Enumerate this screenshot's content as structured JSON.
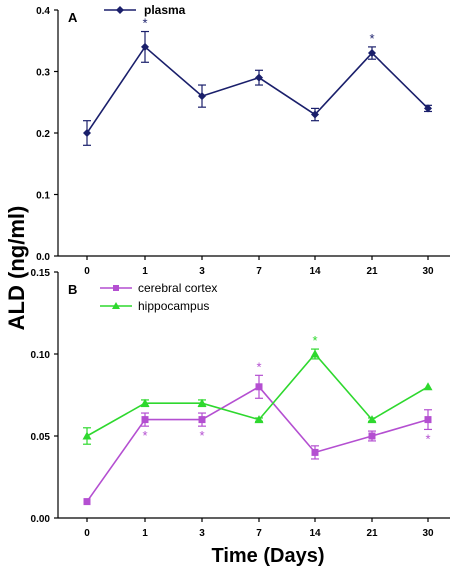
{
  "figure": {
    "ylabel": "ALD (ng/ml)",
    "xlabel": "Time (Days)"
  },
  "chart_data": [
    {
      "type": "line",
      "panel": "A",
      "categories": [
        "0",
        "1",
        "3",
        "7",
        "14",
        "21",
        "30"
      ],
      "ylim": [
        0,
        0.4
      ],
      "yticks": [
        "0.0",
        "0.1",
        "0.2",
        "0.3",
        "0.4"
      ],
      "ytick_values": [
        0,
        0.1,
        0.2,
        0.3,
        0.4
      ],
      "legend_position": "top-left",
      "series": [
        {
          "name": "plasma",
          "color": "#1a1f6b",
          "marker": "diamond",
          "values": [
            0.2,
            0.34,
            0.26,
            0.29,
            0.23,
            0.33,
            0.24
          ],
          "errors": [
            0.02,
            0.025,
            0.018,
            0.012,
            0.01,
            0.01,
            0.005
          ],
          "significance": [
            "",
            "*",
            "",
            "",
            "",
            "*",
            ""
          ]
        }
      ]
    },
    {
      "type": "line",
      "panel": "B",
      "categories": [
        "0",
        "1",
        "3",
        "7",
        "14",
        "21",
        "30"
      ],
      "ylim": [
        0,
        0.15
      ],
      "yticks": [
        "0.00",
        "0.05",
        "0.10",
        "0.15"
      ],
      "ytick_values": [
        0,
        0.05,
        0.1,
        0.15
      ],
      "legend_position": "top-left",
      "series": [
        {
          "name": "cerebral cortex",
          "color": "#b44fd1",
          "marker": "square",
          "values": [
            0.01,
            0.06,
            0.06,
            0.08,
            0.04,
            0.05,
            0.06
          ],
          "errors": [
            0,
            0.004,
            0.004,
            0.007,
            0.004,
            0.003,
            0.006
          ],
          "significance": [
            "",
            "*",
            "*",
            "*",
            "",
            "",
            "*"
          ],
          "significance_pos": [
            "",
            "below",
            "below",
            "above",
            "",
            "",
            "below"
          ]
        },
        {
          "name": "hippocampus",
          "color": "#2ed82e",
          "marker": "triangle",
          "values": [
            0.05,
            0.07,
            0.07,
            0.06,
            0.1,
            0.06,
            0.08
          ],
          "errors": [
            0.005,
            0.002,
            0.002,
            0.001,
            0.003,
            0.001,
            0.0
          ],
          "significance": [
            "",
            "",
            "",
            "",
            "*",
            "",
            ""
          ],
          "significance_pos": [
            "",
            "",
            "",
            "",
            "above",
            "",
            ""
          ]
        }
      ]
    }
  ]
}
